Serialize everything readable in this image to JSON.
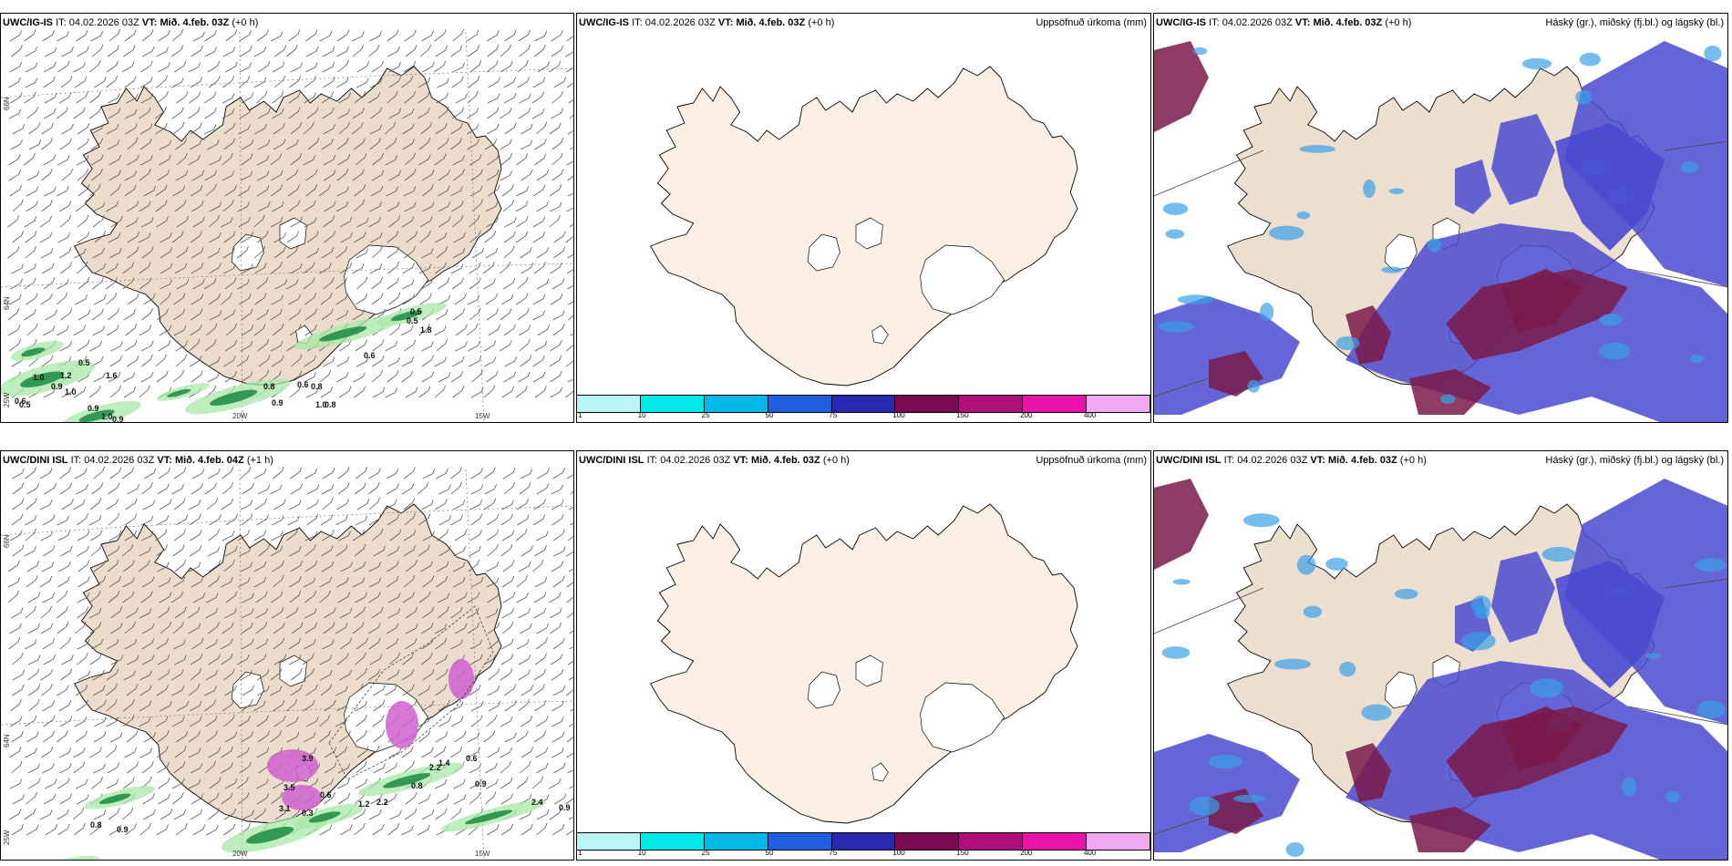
{
  "panels": [
    {
      "model": "UWC/IG-IS",
      "it_label": "IT:",
      "it": "04.02.2026 03Z",
      "vt_label": "VT:",
      "vt": "Mið. 4.feb. 03Z",
      "lead": "(+0 h)",
      "right_title": "",
      "type": "wind"
    },
    {
      "model": "UWC/IG-IS",
      "it_label": "IT:",
      "it": "04.02.2026 03Z",
      "vt_label": "VT:",
      "vt": "Mið. 4.feb. 03Z",
      "lead": "(+0 h)",
      "right_title": "Uppsöfnuð úrkoma (mm)",
      "type": "accum"
    },
    {
      "model": "UWC/IG-IS",
      "it_label": "IT:",
      "it": "04.02.2026 03Z",
      "vt_label": "VT:",
      "vt": "Mið. 4.feb. 03Z",
      "lead": "(+0 h)",
      "right_title": "Háský (gr.), miðský (fj.bl.) og lágský (bl.)",
      "type": "cloud"
    },
    {
      "model": "UWC/DINI ISL",
      "it_label": "IT:",
      "it": "04.02.2026 03Z",
      "vt_label": "VT:",
      "vt": "Mið. 4.feb. 04Z",
      "lead": "(+1 h)",
      "right_title": "",
      "type": "wind"
    },
    {
      "model": "UWC/DINI ISL",
      "it_label": "IT:",
      "it": "04.02.2026 03Z",
      "vt_label": "VT:",
      "vt": "Mið. 4.feb. 03Z",
      "lead": "(+0 h)",
      "right_title": "Uppsöfnuð úrkoma (mm)",
      "type": "accum"
    },
    {
      "model": "UWC/DINI ISL",
      "it_label": "IT:",
      "it": "04.02.2026 03Z",
      "vt_label": "VT:",
      "vt": "Mið. 4.feb. 03Z",
      "lead": "(+0 h)",
      "right_title": "Háský (gr.), miðský (fj.bl.) og lágský (bl.)",
      "type": "cloud"
    }
  ],
  "longitude_labels": [
    "20W",
    "15W"
  ],
  "longitude_left_label": "25W",
  "latitude_labels": [
    "66N",
    "64N"
  ],
  "colorbar": {
    "ticks": [
      "1",
      "10",
      "25",
      "50",
      "75",
      "100",
      "150",
      "200",
      "400"
    ],
    "colors": [
      "#b8f5f5",
      "#00e8e8",
      "#00b8e8",
      "#2060e0",
      "#2828b0",
      "#7a0a52",
      "#b0107e",
      "#e814a8",
      "#f0a8f0"
    ]
  },
  "wind_values_top": [
    "0.5",
    "0.5",
    "1.8",
    "0.6",
    "0.5",
    "1.0",
    "1.2",
    "1.6",
    "0.9",
    "1.0",
    "0.5",
    "0.9",
    "1.0",
    "0.9",
    "0.6",
    "0.8",
    "0.6",
    "0.9",
    "1.0",
    "0.8",
    "0.8"
  ],
  "wind_values_bottom": [
    "3.9",
    "3.5",
    "3.1",
    "0.3",
    "0.6",
    "1.4",
    "0.6",
    "2.2",
    "0.9",
    "0.8",
    "2.2",
    "1.2",
    "2.4",
    "0.9",
    "0.8",
    "0.9"
  ],
  "colors": {
    "land": "#ecdccc",
    "land_accum": "#fcf0e4",
    "cloud_high": "#4a4ad0",
    "cloud_mid": "#7a1a4a",
    "cloud_low": "#3aa0e8"
  }
}
